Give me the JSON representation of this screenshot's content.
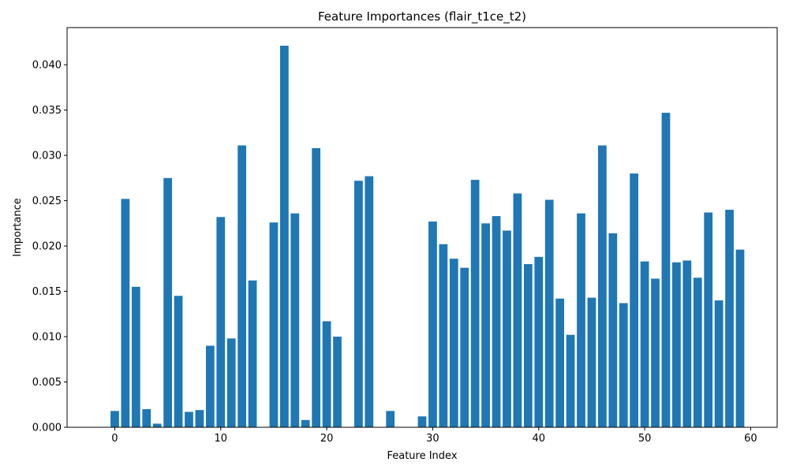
{
  "chart_data": {
    "type": "bar",
    "title": "Feature Importances (flair_t1ce_t2)",
    "xlabel": "Feature Index",
    "ylabel": "Importance",
    "xlim": [
      -4.5,
      62.5
    ],
    "ylim": [
      0,
      0.0441
    ],
    "xticks": [
      "0",
      "10",
      "20",
      "30",
      "40",
      "50",
      "60"
    ],
    "yticks": [
      "0.000",
      "0.005",
      "0.010",
      "0.015",
      "0.020",
      "0.025",
      "0.030",
      "0.035",
      "0.040"
    ],
    "grid": false,
    "legend": "none",
    "bar_color": "#1f77b4",
    "x": [
      0,
      1,
      2,
      3,
      4,
      5,
      6,
      7,
      8,
      9,
      10,
      11,
      12,
      13,
      14,
      15,
      16,
      17,
      18,
      19,
      20,
      21,
      22,
      23,
      24,
      25,
      26,
      27,
      28,
      29,
      30,
      31,
      32,
      33,
      34,
      35,
      36,
      37,
      38,
      39,
      40,
      41,
      42,
      43,
      44,
      45,
      46,
      47,
      48,
      49,
      50,
      51,
      52,
      53,
      54,
      55,
      56,
      57,
      58,
      59
    ],
    "values": [
      0.0018,
      0.0252,
      0.0155,
      0.002,
      0.0004,
      0.0275,
      0.0145,
      0.0017,
      0.0019,
      0.009,
      0.0232,
      0.0098,
      0.0311,
      0.0162,
      0.0,
      0.0226,
      0.0421,
      0.0236,
      0.0008,
      0.0308,
      0.0117,
      0.01,
      0.0,
      0.0272,
      0.0277,
      0.0,
      0.0018,
      0.0,
      0.0,
      0.0012,
      0.0227,
      0.0202,
      0.0186,
      0.0176,
      0.0273,
      0.0225,
      0.0233,
      0.0217,
      0.0258,
      0.018,
      0.0188,
      0.0251,
      0.0142,
      0.0102,
      0.0236,
      0.0143,
      0.0311,
      0.0214,
      0.0137,
      0.028,
      0.0183,
      0.0164,
      0.0347,
      0.0182,
      0.0184,
      0.0165,
      0.0237,
      0.014,
      0.024,
      0.0196
    ]
  }
}
